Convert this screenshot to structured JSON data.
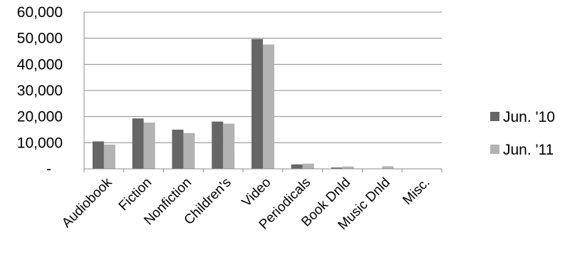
{
  "chart_data": {
    "type": "bar",
    "categories": [
      "Audiobook",
      "Fiction",
      "Nonfiction",
      "Children's",
      "Video",
      "Periodicals",
      "Book Dnld",
      "Music Dnld",
      "Misc."
    ],
    "series": [
      {
        "name": "Jun. '10",
        "color": "#666666",
        "values": [
          10500,
          19300,
          15000,
          18100,
          49700,
          1700,
          500,
          100,
          0
        ]
      },
      {
        "name": "Jun. '11",
        "color": "#b3b3b3",
        "values": [
          9300,
          17700,
          13700,
          17300,
          47600,
          2000,
          900,
          1000,
          0
        ]
      }
    ],
    "ylim": [
      0,
      60000
    ],
    "yticks": [
      0,
      10000,
      20000,
      30000,
      40000,
      50000,
      60000
    ],
    "ytick_labels": [
      "-",
      "10,000",
      "20,000",
      "30,000",
      "40,000",
      "50,000",
      "60,000"
    ],
    "title": "",
    "xlabel": "",
    "ylabel": "",
    "grid": true,
    "legend_position": "right"
  }
}
